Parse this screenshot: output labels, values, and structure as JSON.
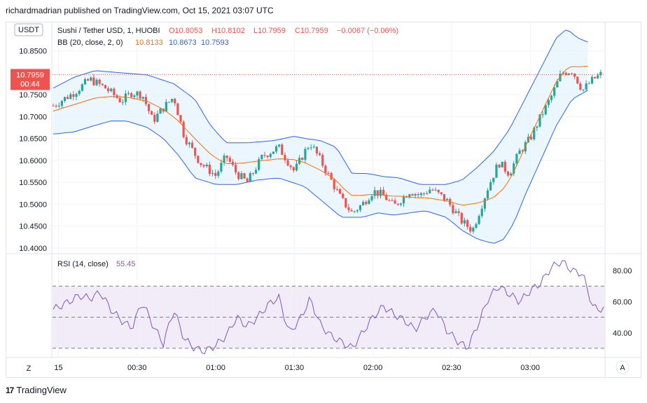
{
  "header": {
    "publisher": "richardmadrian published on TradingView.com, Oct 15, 2021 03:07 UTC"
  },
  "footer": {
    "brand": "TradingView"
  },
  "price_scale": {
    "currency": "USDT",
    "last_price": "10.7959",
    "countdown": "00:44"
  },
  "legend": {
    "symbol": "Sushi / Tether USD, 1, HUOBI",
    "open": "O10.8053",
    "high": "H10.8102",
    "low": "L10.7959",
    "close": "C10.7959",
    "change": "−0.0067 (−0.06%)",
    "bb_label": "BB (20, close, 2, 0)",
    "bb_basis": "10.8133",
    "bb_upper": "10.8673",
    "bb_lower": "10.7593",
    "rsi_label": "RSI (14, close)",
    "rsi_value": "55.45"
  },
  "buttons": {
    "zoom": "Z",
    "auto": "A"
  },
  "colors": {
    "up": "#26a69a",
    "down": "#ef5350",
    "bb_band": "#2962ff",
    "bb_basis": "#ff6d00",
    "bb_fill": "#e3f2fd",
    "rsi_line": "#7e57c2",
    "rsi_fill": "#ede7f6",
    "last_price_bg": "#ef5350"
  },
  "chart_data": [
    {
      "type": "candlestick",
      "title": "Sushi / Tether USD, 1, HUOBI",
      "ylim": [
        10.39,
        10.915
      ],
      "y_ticks": [
        "10.8500",
        "10.7500",
        "10.7000",
        "10.6500",
        "10.6000",
        "10.5500",
        "10.5000",
        "10.4500",
        "10.4000"
      ],
      "x_ticks": [
        "15",
        "00:30",
        "01:00",
        "01:30",
        "02:00",
        "02:30",
        "03:00"
      ],
      "x_tick_positions_min": [
        2,
        32,
        62,
        92,
        122,
        152,
        182
      ],
      "candle_count": 190,
      "close_path": [
        [
          0,
          10.725
        ],
        [
          8,
          10.755
        ],
        [
          14,
          10.785
        ],
        [
          20,
          10.765
        ],
        [
          26,
          10.735
        ],
        [
          30,
          10.755
        ],
        [
          34,
          10.75
        ],
        [
          38,
          10.69
        ],
        [
          42,
          10.72
        ],
        [
          46,
          10.745
        ],
        [
          50,
          10.655
        ],
        [
          56,
          10.595
        ],
        [
          62,
          10.565
        ],
        [
          66,
          10.61
        ],
        [
          70,
          10.57
        ],
        [
          74,
          10.55
        ],
        [
          80,
          10.61
        ],
        [
          86,
          10.63
        ],
        [
          92,
          10.575
        ],
        [
          96,
          10.62
        ],
        [
          98,
          10.64
        ],
        [
          102,
          10.6
        ],
        [
          106,
          10.555
        ],
        [
          110,
          10.51
        ],
        [
          114,
          10.48
        ],
        [
          118,
          10.5
        ],
        [
          122,
          10.53
        ],
        [
          126,
          10.52
        ],
        [
          130,
          10.495
        ],
        [
          136,
          10.53
        ],
        [
          140,
          10.52
        ],
        [
          144,
          10.535
        ],
        [
          150,
          10.51
        ],
        [
          156,
          10.46
        ],
        [
          160,
          10.44
        ],
        [
          163,
          10.49
        ],
        [
          166,
          10.54
        ],
        [
          170,
          10.595
        ],
        [
          174,
          10.57
        ],
        [
          178,
          10.62
        ],
        [
          182,
          10.65
        ],
        [
          186,
          10.7
        ],
        [
          190,
          10.745
        ],
        [
          194,
          10.8
        ],
        [
          198,
          10.805
        ],
        [
          202,
          10.76
        ],
        [
          206,
          10.785
        ],
        [
          210,
          10.8
        ]
      ],
      "bb_upper_path": [
        [
          0,
          10.765
        ],
        [
          8,
          10.79
        ],
        [
          16,
          10.805
        ],
        [
          26,
          10.8
        ],
        [
          36,
          10.795
        ],
        [
          46,
          10.775
        ],
        [
          54,
          10.74
        ],
        [
          60,
          10.68
        ],
        [
          66,
          10.64
        ],
        [
          74,
          10.64
        ],
        [
          84,
          10.645
        ],
        [
          92,
          10.655
        ],
        [
          96,
          10.65
        ],
        [
          102,
          10.645
        ],
        [
          108,
          10.63
        ],
        [
          114,
          10.57
        ],
        [
          120,
          10.57
        ],
        [
          126,
          10.563
        ],
        [
          132,
          10.56
        ],
        [
          140,
          10.545
        ],
        [
          146,
          10.545
        ],
        [
          150,
          10.545
        ],
        [
          156,
          10.555
        ],
        [
          162,
          10.585
        ],
        [
          168,
          10.62
        ],
        [
          174,
          10.67
        ],
        [
          180,
          10.74
        ],
        [
          186,
          10.81
        ],
        [
          192,
          10.88
        ],
        [
          196,
          10.9
        ],
        [
          200,
          10.88
        ],
        [
          204,
          10.87
        ]
      ],
      "bb_lower_path": [
        [
          0,
          10.66
        ],
        [
          8,
          10.665
        ],
        [
          16,
          10.68
        ],
        [
          22,
          10.69
        ],
        [
          28,
          10.69
        ],
        [
          36,
          10.675
        ],
        [
          42,
          10.65
        ],
        [
          48,
          10.61
        ],
        [
          54,
          10.56
        ],
        [
          62,
          10.545
        ],
        [
          70,
          10.545
        ],
        [
          78,
          10.555
        ],
        [
          86,
          10.56
        ],
        [
          96,
          10.54
        ],
        [
          104,
          10.5
        ],
        [
          110,
          10.47
        ],
        [
          118,
          10.47
        ],
        [
          124,
          10.48
        ],
        [
          130,
          10.475
        ],
        [
          136,
          10.48
        ],
        [
          142,
          10.485
        ],
        [
          150,
          10.47
        ],
        [
          156,
          10.44
        ],
        [
          162,
          10.42
        ],
        [
          168,
          10.41
        ],
        [
          172,
          10.42
        ],
        [
          176,
          10.46
        ],
        [
          180,
          10.52
        ],
        [
          186,
          10.6
        ],
        [
          192,
          10.68
        ],
        [
          198,
          10.74
        ],
        [
          204,
          10.76
        ]
      ],
      "last_price": 10.7959
    },
    {
      "type": "line",
      "title": "RSI (14, close)",
      "ylim": [
        25,
        90
      ],
      "y_ticks": [
        "80.00",
        "60.00",
        "40.00"
      ],
      "bands": [
        70,
        50,
        30
      ],
      "values_path": [
        [
          0,
          55
        ],
        [
          6,
          60
        ],
        [
          10,
          64
        ],
        [
          14,
          62
        ],
        [
          18,
          66
        ],
        [
          22,
          55
        ],
        [
          26,
          48
        ],
        [
          30,
          43
        ],
        [
          34,
          60
        ],
        [
          38,
          45
        ],
        [
          42,
          33
        ],
        [
          46,
          55
        ],
        [
          50,
          36
        ],
        [
          54,
          30
        ],
        [
          58,
          28
        ],
        [
          62,
          32
        ],
        [
          66,
          38
        ],
        [
          70,
          50
        ],
        [
          74,
          44
        ],
        [
          78,
          50
        ],
        [
          82,
          58
        ],
        [
          86,
          63
        ],
        [
          90,
          40
        ],
        [
          94,
          48
        ],
        [
          98,
          62
        ],
        [
          102,
          45
        ],
        [
          106,
          38
        ],
        [
          110,
          34
        ],
        [
          114,
          30
        ],
        [
          118,
          40
        ],
        [
          122,
          50
        ],
        [
          126,
          57
        ],
        [
          130,
          52
        ],
        [
          134,
          48
        ],
        [
          138,
          42
        ],
        [
          142,
          50
        ],
        [
          146,
          55
        ],
        [
          150,
          42
        ],
        [
          154,
          35
        ],
        [
          158,
          30
        ],
        [
          162,
          45
        ],
        [
          166,
          62
        ],
        [
          170,
          70
        ],
        [
          174,
          65
        ],
        [
          178,
          60
        ],
        [
          182,
          67
        ],
        [
          186,
          72
        ],
        [
          190,
          82
        ],
        [
          194,
          86
        ],
        [
          198,
          80
        ],
        [
          202,
          78
        ],
        [
          206,
          56
        ],
        [
          210,
          55
        ]
      ],
      "current": 55.45
    }
  ]
}
